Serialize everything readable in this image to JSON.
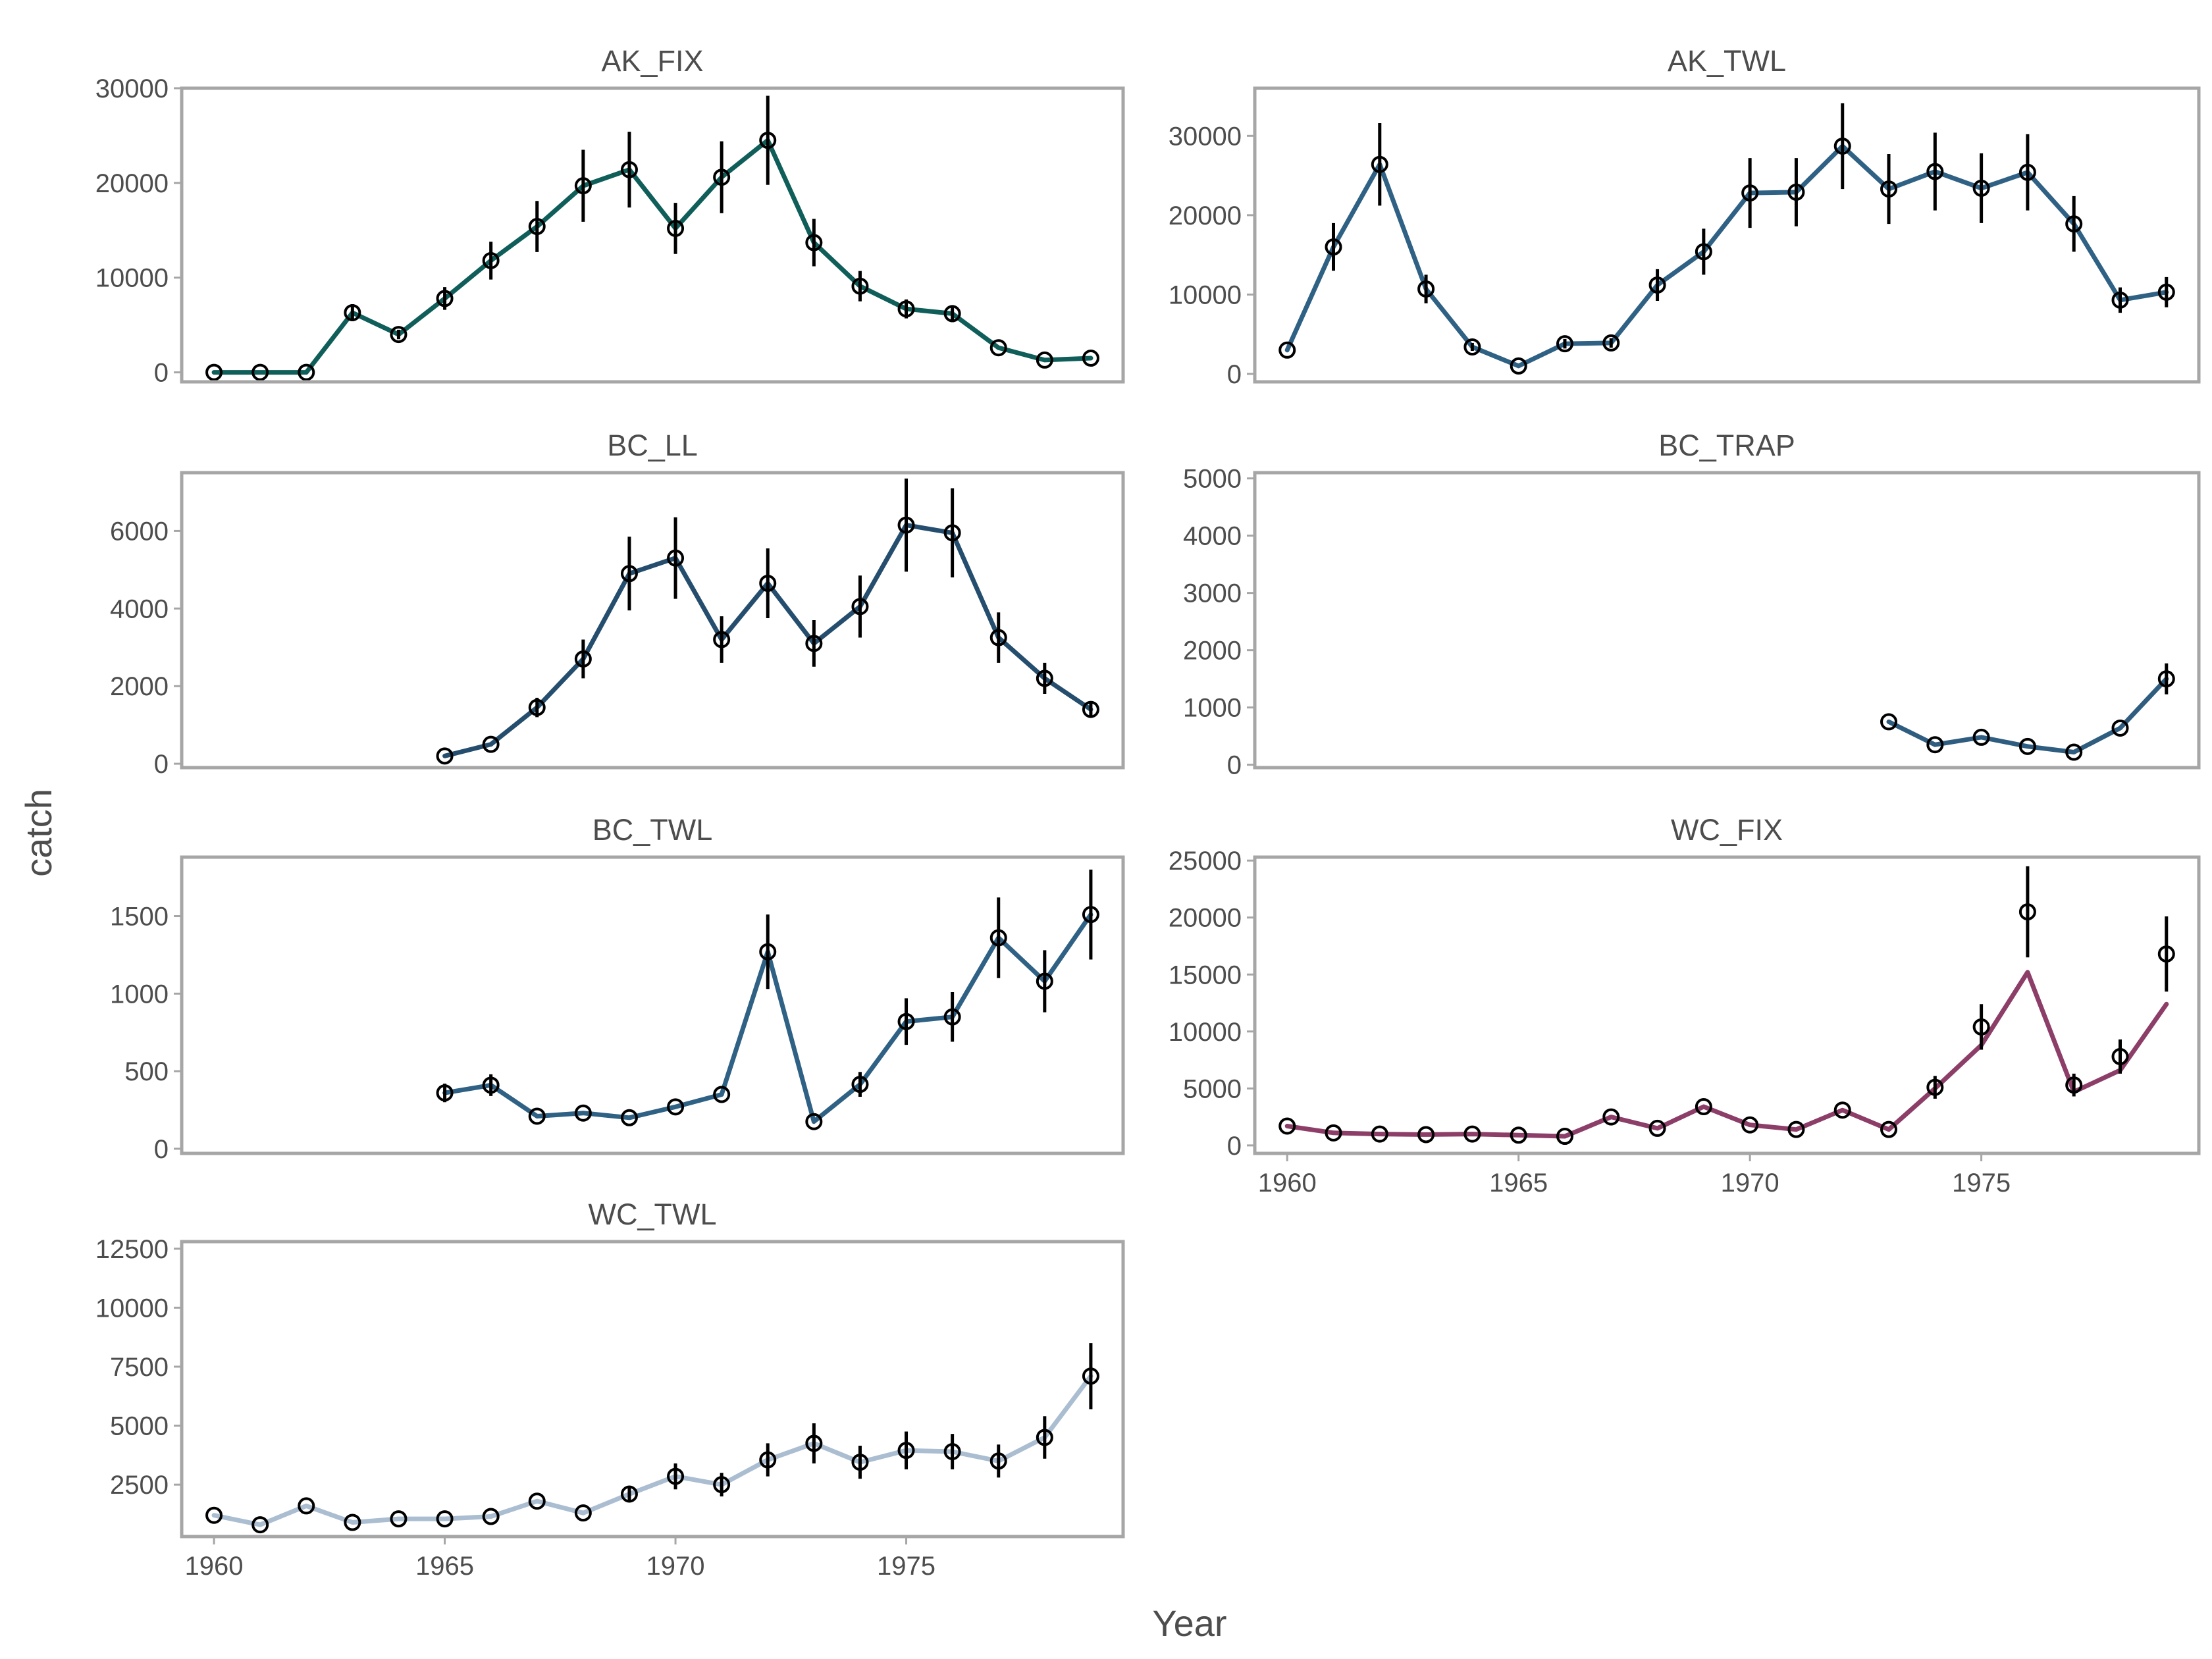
{
  "chart_data": {
    "type": "line",
    "xlabel": "Year",
    "ylabel": "catch",
    "x_ticks": [
      1960,
      1965,
      1970,
      1975
    ],
    "panels": [
      {
        "name": "AK_FIX",
        "color": "#0f5e5a",
        "ylim": [
          -1000,
          30000
        ],
        "yticks": [
          0,
          10000,
          20000,
          30000
        ],
        "show_x": false,
        "years": [
          1960,
          1961,
          1962,
          1963,
          1964,
          1965,
          1966,
          1967,
          1968,
          1969,
          1970,
          1971,
          1972,
          1973,
          1974,
          1975,
          1976,
          1977,
          1978,
          1979
        ],
        "obs": [
          0,
          0,
          0,
          6300,
          4000,
          7800,
          11800,
          15400,
          19700,
          21400,
          15200,
          20600,
          24500,
          13700,
          9100,
          6700,
          6200,
          2600,
          1300,
          1500
        ],
        "err": [
          0,
          0,
          0,
          900,
          500,
          1200,
          2000,
          2700,
          3800,
          4000,
          2700,
          3800,
          4700,
          2500,
          1600,
          1000,
          900,
          0,
          0,
          0
        ],
        "pred": [
          0,
          0,
          0,
          6300,
          4000,
          7800,
          11800,
          15400,
          19700,
          21400,
          15200,
          20600,
          24500,
          13700,
          9100,
          6700,
          6200,
          2600,
          1300,
          1500
        ]
      },
      {
        "name": "AK_TWL",
        "color": "#2f6185",
        "ylim": [
          -1000,
          36000
        ],
        "yticks": [
          0,
          10000,
          20000,
          30000
        ],
        "show_x": false,
        "years": [
          1960,
          1961,
          1962,
          1963,
          1964,
          1965,
          1966,
          1967,
          1968,
          1969,
          1970,
          1971,
          1972,
          1973,
          1974,
          1975,
          1976,
          1977,
          1978,
          1979
        ],
        "obs": [
          3000,
          16000,
          26400,
          10700,
          3400,
          1000,
          3800,
          3900,
          11200,
          15400,
          22800,
          22900,
          28700,
          23300,
          25500,
          23400,
          25400,
          18900,
          9300,
          10300
        ],
        "err": [
          0,
          3000,
          5200,
          1800,
          500,
          0,
          600,
          600,
          2000,
          2900,
          4400,
          4300,
          5400,
          4400,
          4900,
          4400,
          4800,
          3500,
          1600,
          1900
        ],
        "pred": [
          3000,
          16000,
          26400,
          10700,
          3400,
          1000,
          3800,
          3900,
          11200,
          15400,
          22800,
          22900,
          28700,
          23300,
          25500,
          23400,
          25400,
          18900,
          9300,
          10300
        ]
      },
      {
        "name": "BC_LL",
        "color": "#254e6e",
        "ylim": [
          -100,
          7500
        ],
        "yticks": [
          0,
          2000,
          4000,
          6000
        ],
        "show_x": false,
        "years": [
          1965,
          1966,
          1967,
          1968,
          1969,
          1970,
          1971,
          1972,
          1973,
          1974,
          1975,
          1976,
          1977,
          1978,
          1979
        ],
        "obs": [
          200,
          500,
          1450,
          2700,
          4900,
          5300,
          3200,
          4650,
          3100,
          4050,
          6150,
          5950,
          3250,
          2200,
          1400
        ],
        "err": [
          0,
          0,
          250,
          500,
          950,
          1050,
          600,
          900,
          600,
          800,
          1200,
          1150,
          650,
          400,
          200
        ],
        "pred": [
          200,
          500,
          1450,
          2700,
          4900,
          5300,
          3200,
          4650,
          3100,
          4050,
          6150,
          5950,
          3250,
          2200,
          1400
        ]
      },
      {
        "name": "BC_TRAP",
        "color": "#2f5d80",
        "ylim": [
          -50,
          5100
        ],
        "yticks": [
          0,
          1000,
          2000,
          3000,
          4000,
          5000
        ],
        "show_x": false,
        "years": [
          1973,
          1974,
          1975,
          1976,
          1977,
          1978,
          1979
        ],
        "obs": [
          750,
          350,
          480,
          320,
          220,
          640,
          1500
        ],
        "err": [
          0,
          0,
          0,
          0,
          0,
          0,
          270
        ],
        "pred": [
          750,
          350,
          480,
          320,
          220,
          640,
          1500
        ]
      },
      {
        "name": "BC_TWL",
        "color": "#2f6185",
        "ylim": [
          -30,
          1880
        ],
        "yticks": [
          0,
          500,
          1000,
          1500
        ],
        "show_x": false,
        "years": [
          1965,
          1966,
          1967,
          1968,
          1969,
          1970,
          1971,
          1972,
          1973,
          1974,
          1975,
          1976,
          1977,
          1978,
          1979
        ],
        "obs": [
          360,
          410,
          210,
          230,
          200,
          270,
          350,
          1270,
          175,
          415,
          820,
          850,
          1360,
          1080,
          1510
        ],
        "err": [
          60,
          70,
          0,
          0,
          0,
          0,
          0,
          240,
          0,
          80,
          150,
          160,
          260,
          200,
          290
        ],
        "pred": [
          360,
          410,
          210,
          230,
          200,
          270,
          350,
          1270,
          175,
          415,
          820,
          850,
          1360,
          1080,
          1510
        ]
      },
      {
        "name": "WC_FIX",
        "color": "#8c3e68",
        "ylim": [
          -700,
          25300
        ],
        "yticks": [
          0,
          5000,
          10000,
          15000,
          20000,
          25000
        ],
        "show_x": true,
        "years": [
          1960,
          1961,
          1962,
          1963,
          1964,
          1965,
          1966,
          1967,
          1968,
          1969,
          1970,
          1971,
          1972,
          1973,
          1974,
          1975,
          1976,
          1977,
          1978,
          1979
        ],
        "obs": [
          1700,
          1100,
          1000,
          950,
          1000,
          900,
          800,
          2500,
          1500,
          3400,
          1800,
          1400,
          3100,
          1400,
          5100,
          10400,
          20500,
          5300,
          7800,
          16800
        ],
        "err": [
          0,
          0,
          0,
          0,
          0,
          0,
          0,
          0,
          0,
          0,
          0,
          0,
          0,
          0,
          1000,
          2000,
          4000,
          1000,
          1500,
          3300
        ],
        "pred": [
          1700,
          1100,
          1000,
          950,
          1000,
          900,
          800,
          2500,
          1500,
          3400,
          1800,
          1400,
          3100,
          1400,
          5000,
          8800,
          15200,
          4700,
          6600,
          12400
        ]
      },
      {
        "name": "WC_TWL",
        "color": "#aabdd1",
        "ylim": [
          300,
          12800
        ],
        "yticks": [
          2500,
          5000,
          7500,
          10000,
          12500
        ],
        "show_x": true,
        "years": [
          1960,
          1961,
          1962,
          1963,
          1964,
          1965,
          1966,
          1967,
          1968,
          1969,
          1970,
          1971,
          1972,
          1973,
          1974,
          1975,
          1976,
          1977,
          1978,
          1979
        ],
        "obs": [
          1200,
          800,
          1600,
          900,
          1050,
          1050,
          1150,
          1800,
          1300,
          2100,
          2850,
          2500,
          3550,
          4250,
          3450,
          3950,
          3900,
          3500,
          4500,
          7100
        ],
        "err": [
          0,
          0,
          0,
          0,
          0,
          0,
          0,
          0,
          0,
          300,
          550,
          500,
          700,
          850,
          700,
          800,
          750,
          700,
          900,
          1400
        ],
        "pred": [
          1200,
          800,
          1600,
          900,
          1050,
          1050,
          1150,
          1800,
          1300,
          2100,
          2850,
          2500,
          3550,
          4250,
          3450,
          3950,
          3900,
          3500,
          4500,
          7100
        ]
      }
    ]
  }
}
